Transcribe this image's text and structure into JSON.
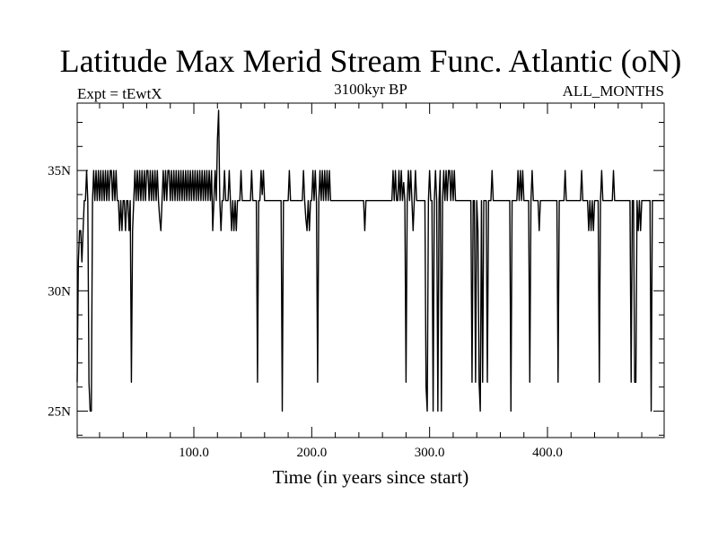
{
  "chart_data": {
    "type": "line",
    "title": "Latitude Max Merid Stream Func. Atlantic (oN)",
    "left_string": "Expt = tEwtX",
    "center_string": "3100kyr BP",
    "right_string": "ALL_MONTHS",
    "xlabel": "Time (in years since start)",
    "ylabel": "",
    "xlim": [
      1,
      499
    ],
    "ylim": [
      23.9,
      37.8
    ],
    "x_ticks": [
      100,
      200,
      300,
      400
    ],
    "x_tick_labels": [
      "100.0",
      "200.0",
      "300.0",
      "400.0"
    ],
    "y_ticks": [
      25,
      30,
      35
    ],
    "y_tick_labels": [
      "25N",
      "30N",
      "35N"
    ],
    "baseline": 33.75,
    "high": 35.0,
    "series": [
      {
        "name": "Latitude Max Merid Stream Func.",
        "events": [
          [
            1,
            26.2
          ],
          [
            2,
            31.2
          ],
          [
            3,
            32.5
          ],
          [
            4,
            32.5
          ],
          [
            5,
            31.2
          ],
          [
            6,
            32.5
          ],
          [
            7,
            33.75
          ],
          [
            9,
            35.0
          ],
          [
            10,
            33.75
          ],
          [
            11,
            26.2
          ],
          [
            12,
            25.0
          ],
          [
            13,
            25.0
          ],
          [
            14,
            33.75
          ],
          [
            15,
            35.0
          ],
          [
            16,
            33.75
          ],
          [
            17,
            35.0
          ],
          [
            18,
            33.75
          ],
          [
            19,
            35.0
          ],
          [
            20,
            33.75
          ],
          [
            21,
            35.0
          ],
          [
            22,
            33.75
          ],
          [
            23,
            35.0
          ],
          [
            24,
            33.75
          ],
          [
            25,
            35.0
          ],
          [
            26,
            33.75
          ],
          [
            27,
            35.0
          ],
          [
            28,
            33.75
          ],
          [
            29,
            35.0
          ],
          [
            30,
            35.0
          ],
          [
            31,
            33.75
          ],
          [
            32,
            35.0
          ],
          [
            33,
            33.75
          ],
          [
            34,
            35.0
          ],
          [
            35,
            33.75
          ],
          [
            37,
            32.5
          ],
          [
            38,
            33.75
          ],
          [
            39,
            32.5
          ],
          [
            41,
            33.75
          ],
          [
            42,
            32.5
          ],
          [
            43,
            33.75
          ],
          [
            45,
            32.5
          ],
          [
            46,
            33.75
          ],
          [
            47,
            26.2
          ],
          [
            48,
            32.5
          ],
          [
            49,
            33.75
          ],
          [
            50,
            35.0
          ],
          [
            51,
            33.75
          ],
          [
            52,
            35.0
          ],
          [
            53,
            33.75
          ],
          [
            54,
            35.0
          ],
          [
            55,
            33.75
          ],
          [
            56,
            35.0
          ],
          [
            57,
            33.75
          ],
          [
            58,
            35.0
          ],
          [
            59,
            33.75
          ],
          [
            60,
            35.0
          ],
          [
            61,
            35.0
          ],
          [
            62,
            33.75
          ],
          [
            63,
            35.0
          ],
          [
            64,
            33.75
          ],
          [
            65,
            35.0
          ],
          [
            66,
            33.75
          ],
          [
            67,
            35.0
          ],
          [
            68,
            33.75
          ],
          [
            69,
            35.0
          ],
          [
            70,
            33.75
          ],
          [
            71,
            33.0
          ],
          [
            72,
            32.5
          ],
          [
            73,
            33.75
          ],
          [
            74,
            35.0
          ],
          [
            75,
            33.75
          ],
          [
            76,
            35.0
          ],
          [
            77,
            33.75
          ],
          [
            78,
            35.0
          ],
          [
            79,
            35.0
          ],
          [
            80,
            33.75
          ],
          [
            81,
            35.0
          ],
          [
            82,
            33.75
          ],
          [
            83,
            35.0
          ],
          [
            84,
            33.75
          ],
          [
            85,
            35.0
          ],
          [
            86,
            33.75
          ],
          [
            87,
            35.0
          ],
          [
            88,
            33.75
          ],
          [
            89,
            35.0
          ],
          [
            90,
            33.75
          ],
          [
            91,
            35.0
          ],
          [
            92,
            33.75
          ],
          [
            93,
            35.0
          ],
          [
            94,
            33.75
          ],
          [
            95,
            35.0
          ],
          [
            96,
            33.75
          ],
          [
            97,
            35.0
          ],
          [
            98,
            33.75
          ],
          [
            99,
            35.0
          ],
          [
            100,
            33.75
          ],
          [
            101,
            35.0
          ],
          [
            102,
            33.75
          ],
          [
            103,
            35.0
          ],
          [
            104,
            33.75
          ],
          [
            105,
            35.0
          ],
          [
            106,
            33.75
          ],
          [
            107,
            35.0
          ],
          [
            108,
            33.75
          ],
          [
            109,
            35.0
          ],
          [
            110,
            33.75
          ],
          [
            111,
            35.0
          ],
          [
            112,
            33.75
          ],
          [
            113,
            35.0
          ],
          [
            114,
            33.75
          ],
          [
            115,
            35.0
          ],
          [
            116,
            32.5
          ],
          [
            117,
            33.75
          ],
          [
            118,
            35.0
          ],
          [
            119,
            33.75
          ],
          [
            120,
            36.3
          ],
          [
            121,
            37.5
          ],
          [
            122,
            33.75
          ],
          [
            123,
            32.5
          ],
          [
            124,
            33.75
          ],
          [
            125,
            33.75
          ],
          [
            126,
            35.0
          ],
          [
            127,
            33.75
          ],
          [
            129,
            33.75
          ],
          [
            130,
            35.0
          ],
          [
            131,
            33.75
          ],
          [
            132,
            32.5
          ],
          [
            133,
            33.75
          ],
          [
            134,
            32.5
          ],
          [
            135,
            33.75
          ],
          [
            136,
            32.5
          ],
          [
            137,
            33.75
          ],
          [
            138,
            33.75
          ],
          [
            140,
            35.0
          ],
          [
            141,
            33.75
          ],
          [
            148,
            33.75
          ],
          [
            149,
            35.0
          ],
          [
            150,
            33.75
          ],
          [
            153,
            33.75
          ],
          [
            154,
            26.2
          ],
          [
            155,
            33.75
          ],
          [
            156,
            33.75
          ],
          [
            157,
            35.0
          ],
          [
            158,
            34.0
          ],
          [
            159,
            35.0
          ],
          [
            160,
            33.75
          ],
          [
            174,
            33.75
          ],
          [
            175,
            25.0
          ],
          [
            176,
            33.75
          ],
          [
            180,
            33.75
          ],
          [
            181,
            35.0
          ],
          [
            182,
            33.75
          ],
          [
            192,
            33.75
          ],
          [
            193,
            35.0
          ],
          [
            194,
            33.75
          ],
          [
            195,
            33.0
          ],
          [
            196,
            32.5
          ],
          [
            197,
            33.75
          ],
          [
            198,
            32.5
          ],
          [
            199,
            33.75
          ],
          [
            200,
            33.75
          ],
          [
            201,
            35.0
          ],
          [
            202,
            33.75
          ],
          [
            203,
            35.0
          ],
          [
            204,
            33.75
          ],
          [
            205,
            26.2
          ],
          [
            206,
            33.75
          ],
          [
            207,
            35.0
          ],
          [
            208,
            33.75
          ],
          [
            209,
            35.0
          ],
          [
            210,
            33.75
          ],
          [
            211,
            35.0
          ],
          [
            212,
            33.75
          ],
          [
            213,
            35.0
          ],
          [
            214,
            33.75
          ],
          [
            215,
            35.0
          ],
          [
            216,
            33.75
          ],
          [
            244,
            33.75
          ],
          [
            245,
            32.5
          ],
          [
            246,
            33.75
          ],
          [
            268,
            33.75
          ],
          [
            269,
            35.0
          ],
          [
            270,
            33.75
          ],
          [
            271,
            35.0
          ],
          [
            272,
            33.75
          ],
          [
            274,
            35.0
          ],
          [
            275,
            33.75
          ],
          [
            276,
            35.0
          ],
          [
            277,
            33.75
          ],
          [
            278,
            34.5
          ],
          [
            279,
            33.75
          ],
          [
            280,
            26.2
          ],
          [
            281,
            33.75
          ],
          [
            282,
            35.0
          ],
          [
            283,
            33.75
          ],
          [
            284,
            35.0
          ],
          [
            285,
            33.75
          ],
          [
            286,
            32.5
          ],
          [
            287,
            33.75
          ],
          [
            288,
            35.0
          ],
          [
            289,
            33.75
          ],
          [
            296,
            33.75
          ],
          [
            297,
            26.0
          ],
          [
            298,
            25.0
          ],
          [
            299,
            33.75
          ],
          [
            300,
            35.0
          ],
          [
            301,
            33.75
          ],
          [
            302,
            33.75
          ],
          [
            303,
            25.0
          ],
          [
            304,
            33.75
          ],
          [
            305,
            35.0
          ],
          [
            306,
            33.75
          ],
          [
            307,
            25.0
          ],
          [
            308,
            33.75
          ],
          [
            309,
            35.0
          ],
          [
            310,
            25.0
          ],
          [
            311,
            33.75
          ],
          [
            312,
            35.0
          ],
          [
            313,
            33.75
          ],
          [
            314,
            35.0
          ],
          [
            315,
            33.75
          ],
          [
            316,
            35.0
          ],
          [
            317,
            35.0
          ],
          [
            318,
            33.75
          ],
          [
            319,
            35.0
          ],
          [
            320,
            33.75
          ],
          [
            321,
            35.0
          ],
          [
            322,
            33.75
          ],
          [
            335,
            33.75
          ],
          [
            336,
            26.2
          ],
          [
            337,
            33.75
          ],
          [
            338,
            33.75
          ],
          [
            339,
            26.2
          ],
          [
            340,
            33.75
          ],
          [
            341,
            32.5
          ],
          [
            342,
            26.2
          ],
          [
            343,
            25.0
          ],
          [
            344,
            33.75
          ],
          [
            345,
            26.2
          ],
          [
            346,
            33.75
          ],
          [
            348,
            33.75
          ],
          [
            349,
            26.2
          ],
          [
            350,
            33.75
          ],
          [
            352,
            33.75
          ],
          [
            353,
            35.0
          ],
          [
            354,
            33.75
          ],
          [
            368,
            33.75
          ],
          [
            369,
            25.0
          ],
          [
            370,
            33.75
          ],
          [
            374,
            33.75
          ],
          [
            375,
            35.0
          ],
          [
            376,
            33.75
          ],
          [
            377,
            35.0
          ],
          [
            378,
            33.75
          ],
          [
            379,
            35.0
          ],
          [
            380,
            33.75
          ],
          [
            384,
            33.75
          ],
          [
            385,
            26.2
          ],
          [
            386,
            33.75
          ],
          [
            387,
            35.0
          ],
          [
            388,
            33.75
          ],
          [
            392,
            33.75
          ],
          [
            393,
            32.5
          ],
          [
            394,
            33.75
          ],
          [
            408,
            33.75
          ],
          [
            409,
            26.2
          ],
          [
            410,
            33.75
          ],
          [
            414,
            33.75
          ],
          [
            415,
            35.0
          ],
          [
            416,
            33.75
          ],
          [
            428,
            33.75
          ],
          [
            429,
            35.0
          ],
          [
            430,
            33.75
          ],
          [
            434,
            33.75
          ],
          [
            435,
            32.5
          ],
          [
            436,
            33.75
          ],
          [
            437,
            32.5
          ],
          [
            438,
            33.75
          ],
          [
            439,
            32.5
          ],
          [
            440,
            33.75
          ],
          [
            443,
            33.75
          ],
          [
            444,
            26.2
          ],
          [
            445,
            33.75
          ],
          [
            446,
            35.0
          ],
          [
            447,
            33.75
          ],
          [
            455,
            33.75
          ],
          [
            456,
            35.0
          ],
          [
            457,
            33.75
          ],
          [
            470,
            33.75
          ],
          [
            471,
            26.2
          ],
          [
            472,
            33.75
          ],
          [
            473,
            33.75
          ],
          [
            474,
            26.2
          ],
          [
            475,
            26.2
          ],
          [
            476,
            33.75
          ],
          [
            477,
            32.5
          ],
          [
            478,
            33.75
          ],
          [
            479,
            32.5
          ],
          [
            480,
            33.75
          ],
          [
            487,
            33.75
          ],
          [
            488,
            25.0
          ],
          [
            489,
            33.75
          ],
          [
            499,
            33.75
          ]
        ]
      }
    ]
  }
}
